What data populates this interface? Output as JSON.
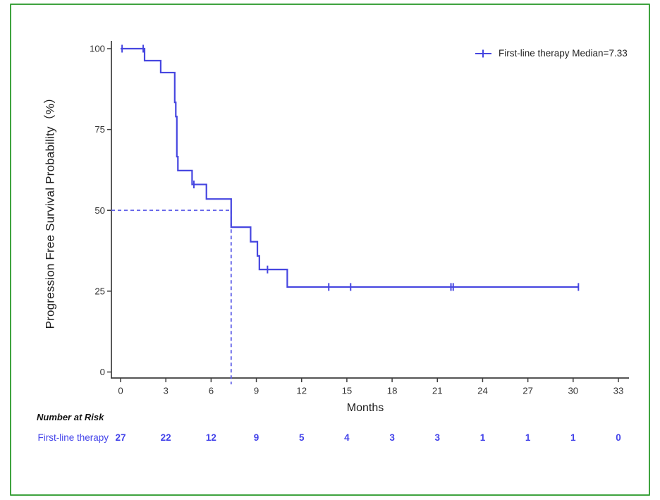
{
  "chart_data": {
    "type": "line",
    "subtype": "kaplan-meier-step",
    "title": "",
    "xlabel": "Months",
    "ylabel": "Progression Free Survival Probability（%）",
    "xlim": [
      0,
      33
    ],
    "ylim": [
      0,
      100
    ],
    "x_ticks": [
      0,
      3,
      6,
      9,
      12,
      15,
      18,
      21,
      24,
      27,
      30,
      33
    ],
    "y_ticks": [
      0,
      25,
      50,
      75,
      100
    ],
    "grid": false,
    "legend_position": "top-right",
    "series": [
      {
        "name": "First-line therapy",
        "legend_label": "First-line therapy Median=7.33",
        "start": [
          0,
          100
        ],
        "steps": [
          [
            1.59,
            96.3
          ],
          [
            2.66,
            92.6
          ],
          [
            3.59,
            83.4
          ],
          [
            3.66,
            79.0
          ],
          [
            3.73,
            66.6
          ],
          [
            3.8,
            62.3
          ],
          [
            4.74,
            58.0
          ],
          [
            5.69,
            53.5
          ],
          [
            7.33,
            44.8
          ],
          [
            8.62,
            40.3
          ],
          [
            9.07,
            35.9
          ],
          [
            9.2,
            31.7
          ],
          [
            11.05,
            26.3
          ]
        ],
        "end_time": 30.35,
        "censor_marks": [
          [
            0.1,
            100
          ],
          [
            1.5,
            100
          ],
          [
            4.86,
            58.0
          ],
          [
            9.74,
            31.7
          ],
          [
            13.8,
            26.3
          ],
          [
            15.25,
            26.3
          ],
          [
            21.9,
            26.3
          ],
          [
            22.05,
            26.3
          ],
          [
            30.35,
            26.3
          ]
        ],
        "median": {
          "time": 7.33,
          "probability": 50
        }
      }
    ]
  },
  "risk_table": {
    "header": "Number at Risk",
    "times": [
      0,
      3,
      6,
      9,
      12,
      15,
      18,
      21,
      24,
      27,
      30,
      33
    ],
    "rows": [
      {
        "label": "First-line therapy",
        "counts": [
          27,
          22,
          12,
          9,
          5,
          4,
          3,
          3,
          1,
          1,
          1,
          0
        ]
      }
    ]
  },
  "colors": {
    "curve": "#4646e0",
    "dashed": "#5e5ee8",
    "axis": "#3d3d3d",
    "tick_label": "#333333",
    "risk_text": "#4343ea",
    "border": "#3fa33f"
  }
}
